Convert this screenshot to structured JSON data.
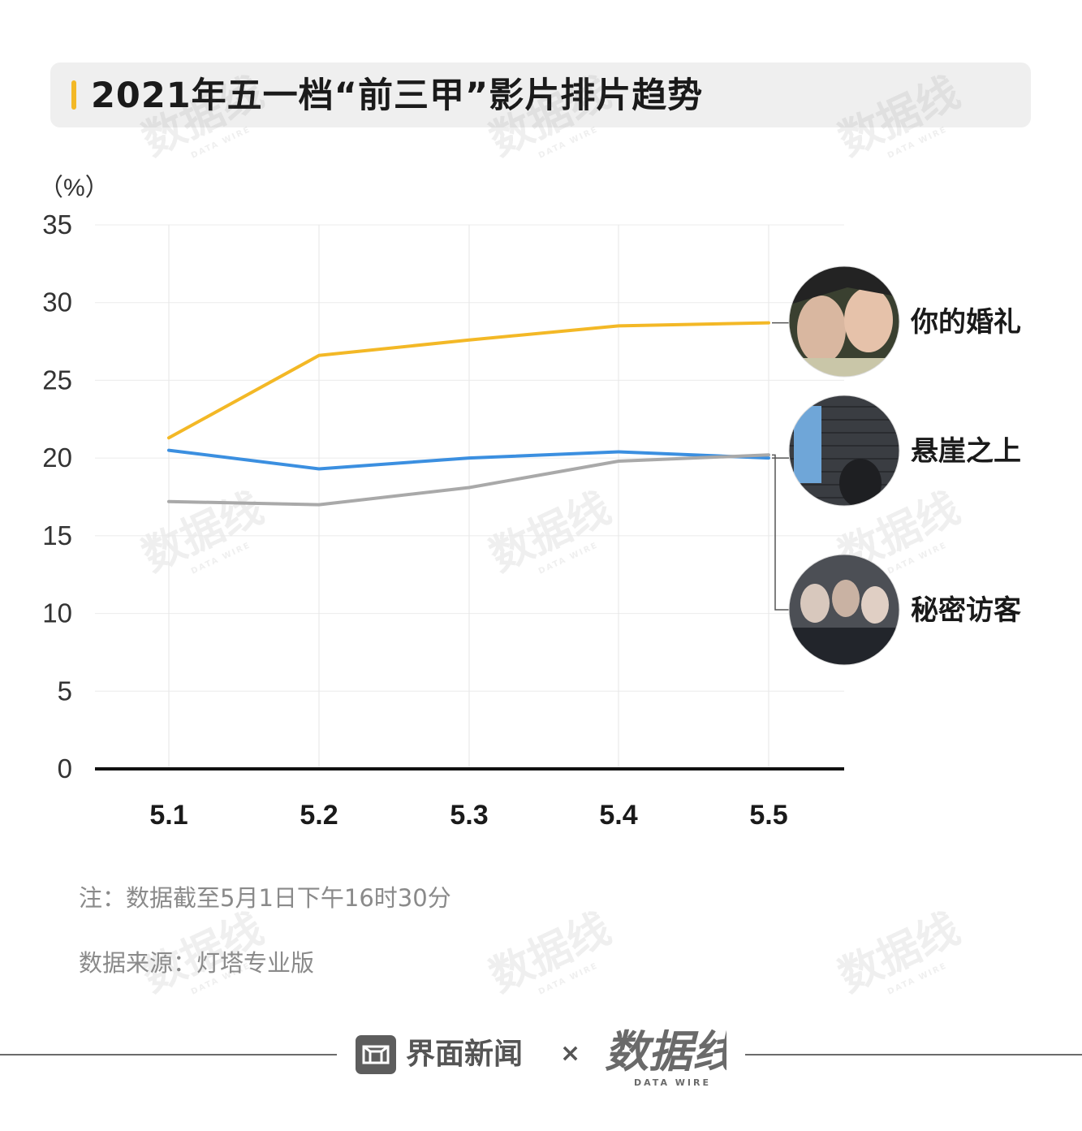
{
  "title": "2021年五一档“前三甲”影片排片趋势",
  "unit_label": "（%）",
  "notes": {
    "note": "注：数据截至5月1日下午16时30分",
    "source": "数据来源：灯塔专业版"
  },
  "footer": {
    "brand": "界面新闻",
    "times": "×",
    "logo_text": "数据线",
    "logo_sub": "DATA WIRE"
  },
  "colors": {
    "accent": "#f3b826",
    "series_wedding": "#f3b826",
    "series_cliff": "#3b8fe0",
    "series_visitor": "#a9a9a9"
  },
  "chart_data": {
    "type": "line",
    "title": "2021年五一档“前三甲”影片排片趋势",
    "xlabel": "",
    "ylabel": "（%）",
    "categories": [
      "5.1",
      "5.2",
      "5.3",
      "5.4",
      "5.5"
    ],
    "yticks": [
      "0",
      "5",
      "10",
      "15",
      "20",
      "25",
      "30",
      "35"
    ],
    "ylim": [
      0,
      35
    ],
    "grid": true,
    "legend_placement": "right",
    "series": [
      {
        "name": "你的婚礼",
        "color": "#f3b826",
        "values": [
          21.3,
          26.6,
          27.6,
          28.5,
          28.7
        ]
      },
      {
        "name": "悬崖之上",
        "color": "#3b8fe0",
        "values": [
          20.5,
          19.3,
          20.0,
          20.4,
          20.0
        ]
      },
      {
        "name": "秘密访客",
        "color": "#a9a9a9",
        "values": [
          17.2,
          17.0,
          18.1,
          19.8,
          20.2
        ]
      }
    ]
  }
}
